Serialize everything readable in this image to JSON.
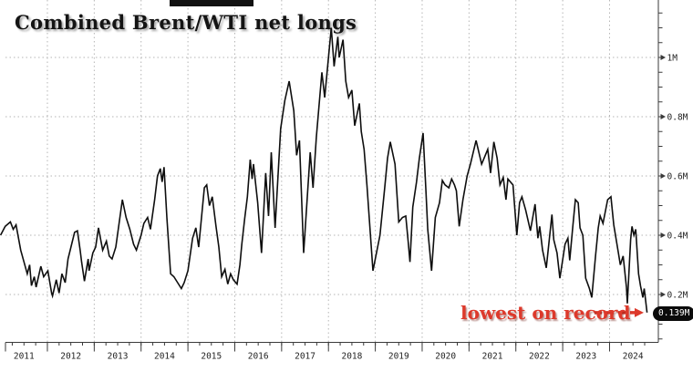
{
  "title": "Combined Brent/WTI net longs",
  "annotation": {
    "text": "lowest on record",
    "value_label": "0.139M",
    "arrow_color": "#dd392b"
  },
  "colors": {
    "line": "#0e0e0e",
    "grid": "#b5b5b5",
    "axis": "#3a3a3a",
    "tick_label": "#1f1f1f",
    "annotation_red": "#dd392b",
    "badge_bg": "#0b0b0b",
    "badge_text": "#ffffff",
    "background": "#ffffff"
  },
  "chart_data": {
    "type": "line",
    "title": "Combined Brent/WTI net longs",
    "grid": "dotted",
    "legend": "none",
    "x_axis": {
      "tick_labels": [
        "2011",
        "2012",
        "2013",
        "2014",
        "2015",
        "2016",
        "2017",
        "2018",
        "2019",
        "2020",
        "2021",
        "2022",
        "2023",
        "2024"
      ],
      "years": [
        2011,
        2012,
        2013,
        2014,
        2015,
        2016,
        2017,
        2018,
        2019,
        2020,
        2021,
        2022,
        2023,
        2024
      ],
      "minor_tick": "quarterly"
    },
    "y_axis": {
      "side": "right",
      "tick_labels": [
        "0.2M",
        "0.4M",
        "0.6M",
        "0.8M",
        "1M"
      ],
      "tick_values": [
        0.2,
        0.4,
        0.6,
        0.8,
        1.0
      ],
      "minor_step": 0.05,
      "visible_range": [
        0.04,
        1.19
      ]
    },
    "last_point": {
      "t": 2024.8,
      "value": 0.139,
      "label": "0.139M",
      "note": "lowest on record"
    },
    "series": [
      {
        "name": "Combined Brent/WTI net longs (millions of contracts)",
        "color": "#0e0e0e",
        "points": [
          [
            2011.0,
            0.4
          ],
          [
            2011.1,
            0.43
          ],
          [
            2011.21,
            0.445
          ],
          [
            2011.27,
            0.42
          ],
          [
            2011.33,
            0.435
          ],
          [
            2011.43,
            0.35
          ],
          [
            2011.5,
            0.31
          ],
          [
            2011.57,
            0.27
          ],
          [
            2011.62,
            0.3
          ],
          [
            2011.66,
            0.23
          ],
          [
            2011.72,
            0.26
          ],
          [
            2011.76,
            0.225
          ],
          [
            2011.86,
            0.295
          ],
          [
            2011.92,
            0.26
          ],
          [
            2012.01,
            0.28
          ],
          [
            2012.09,
            0.205
          ],
          [
            2012.11,
            0.195
          ],
          [
            2012.19,
            0.25
          ],
          [
            2012.25,
            0.205
          ],
          [
            2012.31,
            0.27
          ],
          [
            2012.38,
            0.24
          ],
          [
            2012.44,
            0.32
          ],
          [
            2012.58,
            0.41
          ],
          [
            2012.64,
            0.415
          ],
          [
            2012.7,
            0.35
          ],
          [
            2012.73,
            0.31
          ],
          [
            2012.79,
            0.245
          ],
          [
            2012.87,
            0.32
          ],
          [
            2012.89,
            0.28
          ],
          [
            2012.97,
            0.34
          ],
          [
            2013.03,
            0.36
          ],
          [
            2013.09,
            0.425
          ],
          [
            2013.18,
            0.35
          ],
          [
            2013.26,
            0.38
          ],
          [
            2013.32,
            0.33
          ],
          [
            2013.38,
            0.32
          ],
          [
            2013.46,
            0.36
          ],
          [
            2013.6,
            0.52
          ],
          [
            2013.68,
            0.46
          ],
          [
            2013.76,
            0.42
          ],
          [
            2013.84,
            0.37
          ],
          [
            2013.9,
            0.35
          ],
          [
            2014.0,
            0.4
          ],
          [
            2014.06,
            0.44
          ],
          [
            2014.14,
            0.46
          ],
          [
            2014.2,
            0.42
          ],
          [
            2014.29,
            0.52
          ],
          [
            2014.35,
            0.6
          ],
          [
            2014.41,
            0.625
          ],
          [
            2014.45,
            0.58
          ],
          [
            2014.49,
            0.63
          ],
          [
            2014.55,
            0.46
          ],
          [
            2014.63,
            0.27
          ],
          [
            2014.7,
            0.26
          ],
          [
            2014.78,
            0.24
          ],
          [
            2014.86,
            0.22
          ],
          [
            2014.92,
            0.24
          ],
          [
            2015.0,
            0.28
          ],
          [
            2015.1,
            0.39
          ],
          [
            2015.17,
            0.425
          ],
          [
            2015.23,
            0.36
          ],
          [
            2015.35,
            0.56
          ],
          [
            2015.4,
            0.57
          ],
          [
            2015.46,
            0.5
          ],
          [
            2015.52,
            0.53
          ],
          [
            2015.6,
            0.43
          ],
          [
            2015.66,
            0.36
          ],
          [
            2015.72,
            0.26
          ],
          [
            2015.79,
            0.285
          ],
          [
            2015.85,
            0.235
          ],
          [
            2015.91,
            0.27
          ],
          [
            2015.97,
            0.25
          ],
          [
            2016.05,
            0.235
          ],
          [
            2016.11,
            0.3
          ],
          [
            2016.15,
            0.37
          ],
          [
            2016.21,
            0.455
          ],
          [
            2016.27,
            0.53
          ],
          [
            2016.33,
            0.655
          ],
          [
            2016.37,
            0.59
          ],
          [
            2016.4,
            0.64
          ],
          [
            2016.49,
            0.51
          ],
          [
            2016.57,
            0.34
          ],
          [
            2016.66,
            0.61
          ],
          [
            2016.72,
            0.465
          ],
          [
            2016.78,
            0.68
          ],
          [
            2016.86,
            0.425
          ],
          [
            2016.92,
            0.59
          ],
          [
            2016.98,
            0.76
          ],
          [
            2017.07,
            0.855
          ],
          [
            2017.16,
            0.92
          ],
          [
            2017.26,
            0.82
          ],
          [
            2017.32,
            0.67
          ],
          [
            2017.38,
            0.72
          ],
          [
            2017.47,
            0.34
          ],
          [
            2017.61,
            0.68
          ],
          [
            2017.67,
            0.56
          ],
          [
            2017.74,
            0.73
          ],
          [
            2017.86,
            0.95
          ],
          [
            2017.92,
            0.865
          ],
          [
            2018.06,
            1.1
          ],
          [
            2018.12,
            0.97
          ],
          [
            2018.2,
            1.07
          ],
          [
            2018.23,
            1.0
          ],
          [
            2018.31,
            1.06
          ],
          [
            2018.37,
            0.92
          ],
          [
            2018.43,
            0.865
          ],
          [
            2018.5,
            0.89
          ],
          [
            2018.56,
            0.77
          ],
          [
            2018.66,
            0.845
          ],
          [
            2018.7,
            0.75
          ],
          [
            2018.76,
            0.69
          ],
          [
            2018.82,
            0.57
          ],
          [
            2018.95,
            0.28
          ],
          [
            2019.1,
            0.4
          ],
          [
            2019.2,
            0.56
          ],
          [
            2019.26,
            0.66
          ],
          [
            2019.32,
            0.715
          ],
          [
            2019.42,
            0.64
          ],
          [
            2019.5,
            0.445
          ],
          [
            2019.58,
            0.46
          ],
          [
            2019.65,
            0.465
          ],
          [
            2019.7,
            0.38
          ],
          [
            2019.74,
            0.31
          ],
          [
            2019.8,
            0.495
          ],
          [
            2019.88,
            0.58
          ],
          [
            2019.94,
            0.66
          ],
          [
            2020.02,
            0.745
          ],
          [
            2020.08,
            0.55
          ],
          [
            2020.12,
            0.42
          ],
          [
            2020.2,
            0.28
          ],
          [
            2020.28,
            0.46
          ],
          [
            2020.37,
            0.51
          ],
          [
            2020.43,
            0.585
          ],
          [
            2020.49,
            0.57
          ],
          [
            2020.57,
            0.56
          ],
          [
            2020.63,
            0.59
          ],
          [
            2020.69,
            0.57
          ],
          [
            2020.73,
            0.55
          ],
          [
            2020.79,
            0.43
          ],
          [
            2020.87,
            0.52
          ],
          [
            2020.96,
            0.6
          ],
          [
            2021.03,
            0.64
          ],
          [
            2021.15,
            0.72
          ],
          [
            2021.27,
            0.64
          ],
          [
            2021.4,
            0.69
          ],
          [
            2021.46,
            0.61
          ],
          [
            2021.53,
            0.715
          ],
          [
            2021.6,
            0.66
          ],
          [
            2021.66,
            0.57
          ],
          [
            2021.73,
            0.595
          ],
          [
            2021.79,
            0.52
          ],
          [
            2021.83,
            0.59
          ],
          [
            2021.94,
            0.57
          ],
          [
            2022.02,
            0.4
          ],
          [
            2022.08,
            0.51
          ],
          [
            2022.13,
            0.53
          ],
          [
            2022.21,
            0.485
          ],
          [
            2022.31,
            0.415
          ],
          [
            2022.41,
            0.505
          ],
          [
            2022.47,
            0.39
          ],
          [
            2022.51,
            0.43
          ],
          [
            2022.57,
            0.35
          ],
          [
            2022.65,
            0.29
          ],
          [
            2022.77,
            0.47
          ],
          [
            2022.81,
            0.385
          ],
          [
            2022.88,
            0.34
          ],
          [
            2022.94,
            0.255
          ],
          [
            2023.05,
            0.37
          ],
          [
            2023.11,
            0.39
          ],
          [
            2023.15,
            0.315
          ],
          [
            2023.21,
            0.42
          ],
          [
            2023.27,
            0.52
          ],
          [
            2023.33,
            0.51
          ],
          [
            2023.37,
            0.425
          ],
          [
            2023.43,
            0.4
          ],
          [
            2023.49,
            0.255
          ],
          [
            2023.57,
            0.22
          ],
          [
            2023.62,
            0.19
          ],
          [
            2023.7,
            0.33
          ],
          [
            2023.76,
            0.425
          ],
          [
            2023.8,
            0.465
          ],
          [
            2023.86,
            0.44
          ],
          [
            2023.96,
            0.52
          ],
          [
            2024.03,
            0.53
          ],
          [
            2024.09,
            0.435
          ],
          [
            2024.19,
            0.34
          ],
          [
            2024.23,
            0.3
          ],
          [
            2024.29,
            0.33
          ],
          [
            2024.36,
            0.225
          ],
          [
            2024.38,
            0.17
          ],
          [
            2024.45,
            0.385
          ],
          [
            2024.48,
            0.43
          ],
          [
            2024.52,
            0.4
          ],
          [
            2024.56,
            0.42
          ],
          [
            2024.62,
            0.27
          ],
          [
            2024.66,
            0.23
          ],
          [
            2024.71,
            0.19
          ],
          [
            2024.74,
            0.22
          ],
          [
            2024.8,
            0.139
          ]
        ]
      }
    ]
  }
}
